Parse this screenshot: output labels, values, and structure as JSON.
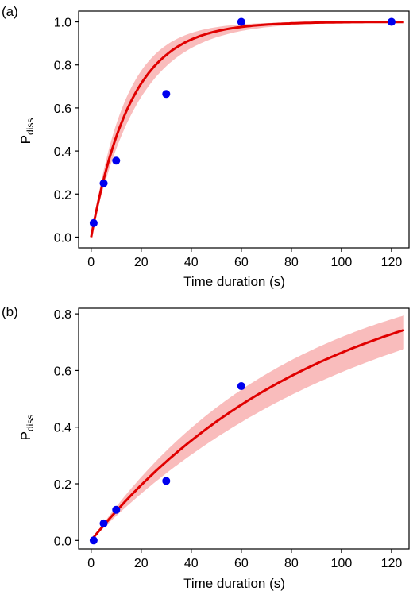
{
  "chart_data": [
    {
      "panel_label": "(a)",
      "type": "scatter",
      "xlabel": "Time duration (s)",
      "ylabel_main": "P",
      "ylabel_sub": "diss",
      "xlim": [
        -5,
        127
      ],
      "ylim": [
        -0.05,
        1.05
      ],
      "xticks": [
        "0",
        "20",
        "40",
        "60",
        "80",
        "100",
        "120"
      ],
      "yticks": [
        "0.0",
        "0.2",
        "0.4",
        "0.6",
        "0.8",
        "1.0"
      ],
      "colors": {
        "points": "#0000ee",
        "curve": "#e00000",
        "band": "#f9bcbc"
      },
      "points": {
        "x": [
          1,
          5,
          10,
          30,
          60,
          120
        ],
        "y": [
          0.065,
          0.25,
          0.355,
          0.665,
          1.0,
          1.0
        ]
      },
      "fit": {
        "tau": 16,
        "band_tau_low": 13.5,
        "band_tau_high": 19.0,
        "x_range": [
          0,
          125
        ]
      }
    },
    {
      "panel_label": "(b)",
      "type": "scatter",
      "xlabel": "Time duration (s)",
      "ylabel_main": "P",
      "ylabel_sub": "diss",
      "xlim": [
        -5,
        127
      ],
      "ylim": [
        -0.03,
        0.82
      ],
      "xticks": [
        "0",
        "20",
        "40",
        "60",
        "80",
        "100",
        "120"
      ],
      "yticks": [
        "0.0",
        "0.2",
        "0.4",
        "0.6",
        "0.8"
      ],
      "colors": {
        "points": "#0000ee",
        "curve": "#e00000",
        "band": "#f9bcbc"
      },
      "points": {
        "x": [
          1,
          5,
          10,
          30,
          60
        ],
        "y": [
          0.0,
          0.06,
          0.108,
          0.21,
          0.545
        ]
      },
      "fit": {
        "tau": 92,
        "band_tau_low": 79,
        "band_tau_high": 111,
        "x_range": [
          0,
          125
        ]
      }
    }
  ]
}
